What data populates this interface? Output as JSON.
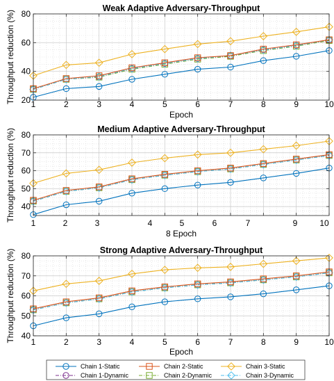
{
  "chart_data": [
    {
      "type": "line",
      "title": "Weak Adaptive Adversary-Throughput",
      "xlabel": "Epoch",
      "ylabel": "Throughput reduction (%)",
      "x": [
        1,
        2,
        3,
        4,
        5,
        6,
        7,
        8,
        9,
        10
      ],
      "xticklabels": [
        "1",
        "2",
        "3",
        "4",
        "5",
        "6",
        "7",
        "8",
        "9",
        "10"
      ],
      "xlim": [
        1,
        10
      ],
      "ylim": [
        20,
        80
      ],
      "yticks": [
        20,
        40,
        60,
        80
      ],
      "grid": true,
      "series": [
        {
          "name": "Chain 1-Static",
          "values": [
            22,
            28,
            29.5,
            34.5,
            38,
            41.5,
            43,
            47.5,
            50.5,
            54.5
          ]
        },
        {
          "name": "Chain 2-Static",
          "values": [
            28,
            35,
            37,
            42.5,
            46,
            49.5,
            51,
            55.5,
            58.5,
            62
          ]
        },
        {
          "name": "Chain 3-Static",
          "values": [
            37,
            44.5,
            46,
            52,
            55.5,
            59,
            61,
            64.5,
            67.5,
            71
          ]
        },
        {
          "name": "Chain 1-Dynamic",
          "values": [
            27.5,
            34.5,
            36,
            42,
            45.5,
            49,
            50.5,
            55,
            58,
            61.5
          ]
        },
        {
          "name": "Chain 2-Dynamic",
          "values": [
            27.5,
            34.5,
            36,
            41.5,
            45,
            48.5,
            50.5,
            54.5,
            57.5,
            61.5
          ]
        },
        {
          "name": "Chain 3-Dynamic",
          "values": [
            27.5,
            34.5,
            36.5,
            42,
            45.5,
            49,
            51,
            55,
            58,
            62
          ]
        }
      ]
    },
    {
      "type": "line",
      "title": "Medium Adaptive Adversary-Throughput",
      "xlabel": "8 Epoch",
      "ylabel": "Throughput reduction (%)",
      "x": [
        1,
        2,
        3,
        4,
        5,
        6,
        7,
        8,
        9,
        10
      ],
      "xticklabels": [
        "1",
        "2",
        "3",
        "4",
        "5",
        "6",
        "7",
        "",
        "9",
        "10"
      ],
      "xlim": [
        1,
        10
      ],
      "ylim": [
        35,
        80
      ],
      "yticks": [
        40,
        50,
        60,
        70,
        80
      ],
      "grid": true,
      "series": [
        {
          "name": "Chain 1-Static",
          "values": [
            35.5,
            41,
            43,
            47.5,
            50,
            52,
            53.5,
            56,
            58.5,
            61.5
          ]
        },
        {
          "name": "Chain 2-Static",
          "values": [
            43.5,
            49,
            51,
            55.5,
            58,
            60,
            61.5,
            64,
            66.5,
            69
          ]
        },
        {
          "name": "Chain 3-Static",
          "values": [
            53,
            58.5,
            60.5,
            64.5,
            67,
            69,
            70,
            72,
            74,
            76.5
          ]
        },
        {
          "name": "Chain 1-Dynamic",
          "values": [
            43,
            48.5,
            50.5,
            55,
            57.5,
            59.5,
            61,
            63.5,
            66,
            68.5
          ]
        },
        {
          "name": "Chain 2-Dynamic",
          "values": [
            43,
            48.5,
            50.5,
            55,
            57.5,
            59.5,
            61,
            63.5,
            66,
            68.5
          ]
        },
        {
          "name": "Chain 3-Dynamic",
          "values": [
            43,
            48.5,
            50.5,
            55,
            57.5,
            59.5,
            61,
            63.5,
            66,
            68.5
          ]
        }
      ]
    },
    {
      "type": "line",
      "title": "Strong Adaptive Adversary-Throughput",
      "xlabel": "Epoch",
      "ylabel": "Throughput reduction (%)",
      "x": [
        1,
        2,
        3,
        4,
        5,
        6,
        7,
        8,
        9,
        10
      ],
      "xticklabels": [
        "1",
        "2",
        "3",
        "4",
        "5",
        "6",
        "7",
        "8",
        "9",
        "10"
      ],
      "xlim": [
        1,
        10
      ],
      "ylim": [
        40,
        80
      ],
      "yticks": [
        40,
        50,
        60,
        70,
        80
      ],
      "grid": true,
      "series": [
        {
          "name": "Chain 1-Static",
          "values": [
            45,
            49,
            51,
            54.5,
            57,
            58.5,
            59.5,
            61,
            63,
            65
          ]
        },
        {
          "name": "Chain 2-Static",
          "values": [
            53.5,
            57,
            59,
            62.5,
            64.5,
            66,
            67,
            68.5,
            70,
            72
          ]
        },
        {
          "name": "Chain 3-Static",
          "values": [
            62.5,
            66,
            67.5,
            71,
            73,
            74,
            74.5,
            76,
            77.5,
            79
          ]
        },
        {
          "name": "Chain 1-Dynamic",
          "values": [
            53,
            56.5,
            58.5,
            62,
            64,
            65.5,
            66.5,
            68,
            69.5,
            71.5
          ]
        },
        {
          "name": "Chain 2-Dynamic",
          "values": [
            53,
            56.5,
            58.5,
            62,
            64,
            65.5,
            66.5,
            68,
            69.5,
            71.5
          ]
        },
        {
          "name": "Chain 3-Dynamic",
          "values": [
            53,
            56.5,
            58.5,
            62,
            64,
            65.5,
            66.5,
            68,
            69.5,
            71.5
          ]
        }
      ]
    }
  ],
  "legend": {
    "placement": "bottom",
    "items": [
      {
        "label": "Chain 1-Static",
        "color": "#0072BD",
        "marker": "circle",
        "dash": "solid"
      },
      {
        "label": "Chain 2-Static",
        "color": "#D95319",
        "marker": "square",
        "dash": "solid"
      },
      {
        "label": "Chain 3-Static",
        "color": "#EDB120",
        "marker": "diamond",
        "dash": "solid"
      },
      {
        "label": "Chain 1-Dynamic",
        "color": "#7E2F8E",
        "marker": "circle",
        "dash": "dashdot"
      },
      {
        "label": "Chain 2-Dynamic",
        "color": "#77AC30",
        "marker": "square",
        "dash": "dashdot"
      },
      {
        "label": "Chain 3-Dynamic",
        "color": "#4DBEEE",
        "marker": "diamond",
        "dash": "dashdot"
      }
    ]
  },
  "colors": {
    "chain1_static": "#0072BD",
    "chain2_static": "#D95319",
    "chain3_static": "#EDB120",
    "chain1_dynamic": "#7E2F8E",
    "chain2_dynamic": "#77AC30",
    "chain3_dynamic": "#4DBEEE"
  }
}
